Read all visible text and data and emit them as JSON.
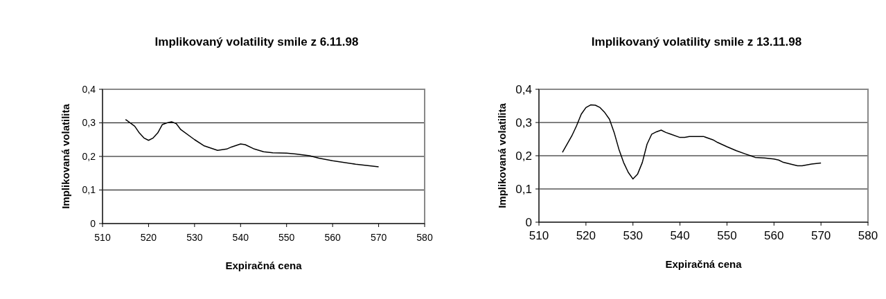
{
  "chart_data": [
    {
      "type": "line",
      "title": "Implikovaný volatility smile z 6.11.98",
      "xlabel": "Expiračná cena",
      "ylabel": "Implikovaná volatilita",
      "xlim": [
        510,
        580
      ],
      "xticks": [
        510,
        520,
        530,
        540,
        550,
        560,
        570,
        580
      ],
      "ylim": [
        0,
        0.4
      ],
      "yticks": [
        {
          "value": 0,
          "label": "0"
        },
        {
          "value": 0.1,
          "label": "0,1"
        },
        {
          "value": 0.2,
          "label": "0,2"
        },
        {
          "value": 0.3,
          "label": "0,3"
        },
        {
          "value": 0.4,
          "label": "0,4"
        }
      ],
      "grid": "y",
      "marker": "none",
      "line_style": "solid",
      "series": [
        {
          "color": "#000000",
          "x": [
            515,
            517,
            518,
            519,
            520,
            521,
            522,
            523,
            524,
            525,
            526,
            527,
            530,
            532,
            535,
            537,
            538,
            540,
            541,
            543,
            545,
            547,
            550,
            552,
            555,
            557,
            560,
            565,
            570
          ],
          "values": [
            0.31,
            0.29,
            0.27,
            0.255,
            0.248,
            0.255,
            0.27,
            0.295,
            0.3,
            0.303,
            0.298,
            0.28,
            0.25,
            0.232,
            0.218,
            0.222,
            0.228,
            0.237,
            0.235,
            0.222,
            0.214,
            0.211,
            0.21,
            0.207,
            0.202,
            0.195,
            0.187,
            0.177,
            0.169
          ]
        }
      ]
    },
    {
      "type": "line",
      "title": "Implikovaný volatility smile z 13.11.98",
      "xlabel": "Expiračná cena",
      "ylabel": "Implikovaná volatilita",
      "xlim": [
        510,
        580
      ],
      "xticks": [
        510,
        520,
        530,
        540,
        550,
        560,
        570,
        580
      ],
      "ylim": [
        0,
        0.4
      ],
      "yticks": [
        {
          "value": 0,
          "label": "0"
        },
        {
          "value": 0.1,
          "label": "0,1"
        },
        {
          "value": 0.2,
          "label": "0,2"
        },
        {
          "value": 0.3,
          "label": "0,3"
        },
        {
          "value": 0.4,
          "label": "0,4"
        }
      ],
      "grid": "y",
      "marker": "none",
      "line_style": "solid",
      "series": [
        {
          "color": "#000000",
          "x": [
            515,
            517,
            518,
            519,
            520,
            521,
            522,
            523,
            524,
            525,
            526,
            527,
            528,
            529,
            530,
            531,
            532,
            533,
            534,
            535,
            536,
            537,
            538,
            540,
            541,
            542,
            545,
            547,
            548,
            550,
            552,
            554,
            555,
            556,
            558,
            560,
            561,
            562,
            565,
            566,
            568,
            570
          ],
          "values": [
            0.21,
            0.26,
            0.29,
            0.325,
            0.345,
            0.353,
            0.352,
            0.345,
            0.33,
            0.31,
            0.27,
            0.22,
            0.18,
            0.15,
            0.13,
            0.145,
            0.18,
            0.235,
            0.265,
            0.272,
            0.277,
            0.27,
            0.265,
            0.255,
            0.255,
            0.258,
            0.258,
            0.248,
            0.24,
            0.227,
            0.215,
            0.205,
            0.2,
            0.195,
            0.193,
            0.19,
            0.187,
            0.18,
            0.17,
            0.17,
            0.175,
            0.178
          ]
        }
      ]
    }
  ]
}
